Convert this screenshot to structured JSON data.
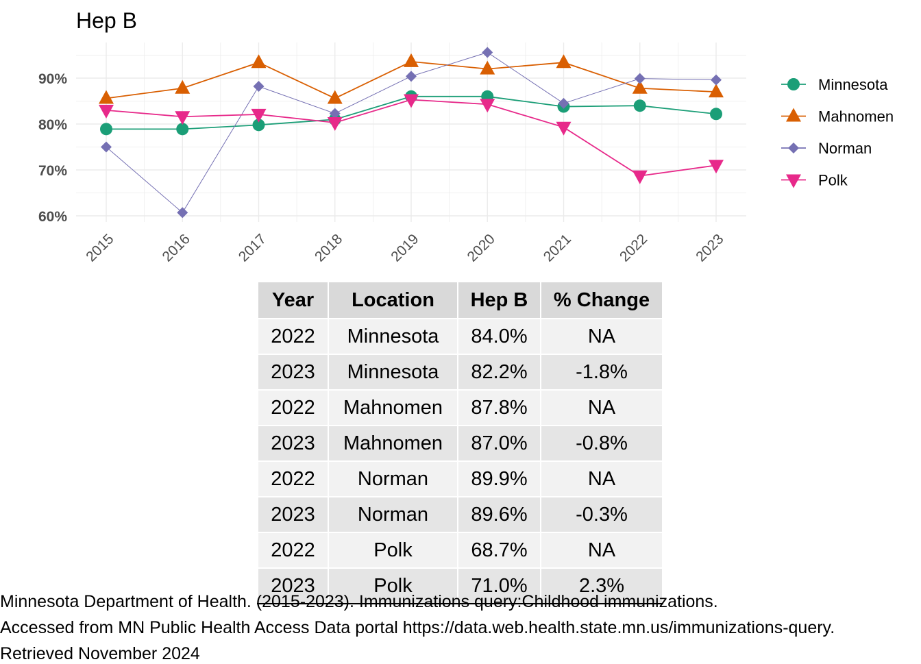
{
  "chart_data": {
    "type": "line",
    "title": "Hep B",
    "xlabel": "",
    "ylabel": "",
    "x": [
      "2015",
      "2016",
      "2017",
      "2018",
      "2019",
      "2020",
      "2021",
      "2022",
      "2023"
    ],
    "ylim": [
      59,
      98
    ],
    "yticks": [
      "60%",
      "70%",
      "80%",
      "90%"
    ],
    "ytick_values": [
      60,
      70,
      80,
      90
    ],
    "grid": true,
    "legend_position": "right",
    "series": [
      {
        "name": "Minnesota",
        "marker": "circle",
        "color": "#1b9e77",
        "values": [
          78.9,
          78.9,
          79.8,
          81.0,
          86.0,
          86.0,
          83.8,
          84.0,
          82.2
        ]
      },
      {
        "name": "Mahnomen",
        "marker": "triangle-up",
        "color": "#d95f02",
        "values": [
          85.6,
          87.8,
          93.4,
          85.6,
          93.6,
          92.0,
          93.4,
          87.8,
          87.0
        ]
      },
      {
        "name": "Norman",
        "marker": "diamond",
        "color": "#7570b3",
        "values": [
          75.0,
          60.7,
          88.2,
          82.3,
          90.4,
          95.6,
          84.5,
          89.9,
          89.6
        ]
      },
      {
        "name": "Polk",
        "marker": "triangle-down",
        "color": "#e7298a",
        "values": [
          83.0,
          81.6,
          82.1,
          80.3,
          85.3,
          84.3,
          79.3,
          68.7,
          71.0
        ]
      }
    ]
  },
  "table": {
    "headers": [
      "Year",
      "Location",
      "Hep B",
      "% Change"
    ],
    "rows": [
      [
        "2022",
        "Minnesota",
        "84.0%",
        "NA"
      ],
      [
        "2023",
        "Minnesota",
        "82.2%",
        "-1.8%"
      ],
      [
        "2022",
        "Mahnomen",
        "87.8%",
        "NA"
      ],
      [
        "2023",
        "Mahnomen",
        "87.0%",
        "-0.8%"
      ],
      [
        "2022",
        "Norman",
        "89.9%",
        "NA"
      ],
      [
        "2023",
        "Norman",
        "89.6%",
        "-0.3%"
      ],
      [
        "2022",
        "Polk",
        "68.7%",
        "NA"
      ],
      [
        "2023",
        "Polk",
        "71.0%",
        "2.3%"
      ]
    ]
  },
  "caption": {
    "line1": "Minnesota Department of Health. (2015-2023). Immunizations query:Childhood immunizations.",
    "line2": "Accessed from MN Public Health Access Data portal https://data.web.health.state.mn.us/immunizations-query.",
    "line3": "Retrieved November 2024"
  }
}
